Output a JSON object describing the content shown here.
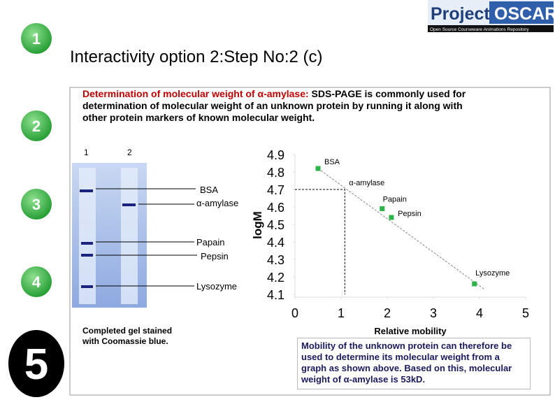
{
  "logo": {
    "word1": "Project",
    "word2": "OSCAR",
    "tagline": "Open Source Courseware Animations Repository"
  },
  "steps": [
    "1",
    "2",
    "3",
    "4",
    "5"
  ],
  "title": "Interactivity option 2:Step No:2 (c)",
  "description": {
    "highlight": "Determination of molecular weight of α-amylase:",
    "text": " SDS-PAGE is commonly used for determination of molecular weight of an unknown protein by running it along with other protein markers of known molecular weight."
  },
  "gel": {
    "lanes": [
      "1",
      "2"
    ],
    "labels": [
      "BSA",
      "α-amylase",
      "Papain",
      "Pepsin",
      "Lysozyme"
    ],
    "caption": "Completed gel stained with Coomassie blue."
  },
  "chart_data": {
    "type": "scatter",
    "x_label": "Relative mobility",
    "y_label": "logM",
    "xlim": [
      0,
      5
    ],
    "ylim": [
      4.1,
      4.9
    ],
    "xticks": [
      0,
      1,
      2,
      3,
      4,
      5
    ],
    "yticks": [
      {
        "value": 4.1,
        "label": "4.1"
      },
      {
        "value": 4.2,
        "label": "4.2"
      },
      {
        "value": 4.3,
        "label": "4.3"
      },
      {
        "value": 4.4,
        "label": "4.4"
      },
      {
        "value": 4.5,
        "label": "4.5"
      },
      {
        "value": 4.6,
        "label": "4.6"
      },
      {
        "value": 4.7,
        "label": "4.7"
      },
      {
        "value": 4.8,
        "label": "4.8"
      },
      {
        "value": 4.9,
        "label": "4.9"
      }
    ],
    "color": "#2db34a",
    "points": [
      {
        "name": "BSA",
        "x": 0.5,
        "y": 4.82
      },
      {
        "name": "Papain",
        "x": 1.89,
        "y": 4.59
      },
      {
        "name": "Pepsin",
        "x": 2.09,
        "y": 4.54
      },
      {
        "name": "Lysozyme",
        "x": 3.89,
        "y": 4.16
      }
    ],
    "marker": {
      "name": "α-amylase",
      "x": 1.08,
      "y": 4.7
    },
    "trendline": {
      "x": [
        0.5,
        4.1
      ],
      "y": [
        4.82,
        4.13
      ]
    }
  },
  "note": "Mobility of the unknown protein can therefore be used to determine its molecular weight from a graph as shown above. Based on this, molecular weight of α-amylase is 53kD."
}
